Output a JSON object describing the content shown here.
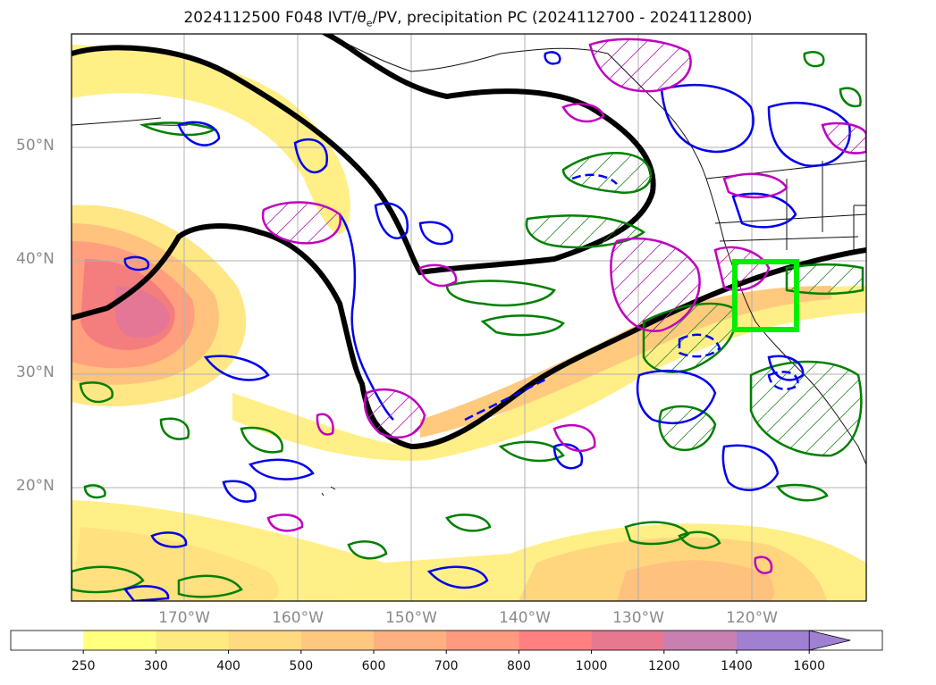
{
  "title": {
    "prefix": "2024112500 F048 IVT/θ",
    "subscript": "e",
    "suffix": "/PV, precipitation PC (2024112700 - 2024112800)"
  },
  "map": {
    "lat_labels": [
      "50°N",
      "40°N",
      "30°N",
      "20°N"
    ],
    "lon_labels": [
      "170°W",
      "160°W",
      "150°W",
      "140°W",
      "130°W",
      "120°W"
    ],
    "grid": true,
    "highlight_box_color": "#00ee00",
    "pv_contour_color": "#000000",
    "positive_contour_color": "#008000",
    "negative_contour_color": "#0000ff",
    "theta_contour_color": "#c000c0"
  },
  "colorbar": {
    "levels": [
      "250",
      "300",
      "400",
      "500",
      "600",
      "700",
      "800",
      "1000",
      "1200",
      "1400",
      "1600"
    ],
    "colors": [
      "#ffffff",
      "#ffff80",
      "#ffea80",
      "#ffda80",
      "#ffc880",
      "#ffb080",
      "#ff9a80",
      "#ff8080",
      "#e87890",
      "#c880b0",
      "#a080d0"
    ],
    "extend": "max"
  }
}
